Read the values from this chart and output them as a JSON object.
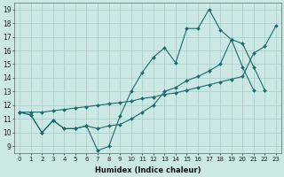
{
  "bg_color": "#cce8e4",
  "line_color": "#1a6b6b",
  "xlabel": "Humidex (Indice chaleur)",
  "series1_x": [
    0,
    1,
    2,
    3,
    4,
    5,
    6,
    7,
    8,
    9,
    10,
    11,
    12,
    13,
    14,
    15,
    16,
    17,
    18,
    19,
    20,
    21
  ],
  "series1_y": [
    11.5,
    11.3,
    10.0,
    10.9,
    10.3,
    10.3,
    10.5,
    8.7,
    9.0,
    11.2,
    13.0,
    14.4,
    15.5,
    16.2,
    15.1,
    17.6,
    17.6,
    19.0,
    17.5,
    16.8,
    14.8,
    13.1
  ],
  "series2_x": [
    0,
    1,
    2,
    3,
    4,
    5,
    6,
    7,
    8,
    9,
    10,
    11,
    12,
    13,
    14,
    15,
    16,
    17,
    18,
    19,
    20,
    21,
    22
  ],
  "series2_y": [
    11.5,
    11.3,
    10.0,
    10.9,
    10.3,
    10.3,
    10.5,
    10.3,
    10.5,
    10.6,
    11.0,
    11.5,
    12.0,
    13.0,
    13.3,
    13.8,
    14.1,
    14.5,
    15.0,
    16.8,
    16.5,
    14.8,
    13.1
  ],
  "series3_x": [
    0,
    1,
    2,
    3,
    4,
    5,
    6,
    7,
    8,
    9,
    10,
    11,
    12,
    13,
    14,
    15,
    16,
    17,
    18,
    19,
    20,
    21,
    22,
    23
  ],
  "series3_y": [
    11.5,
    11.5,
    11.5,
    11.6,
    11.7,
    11.8,
    11.9,
    12.0,
    12.1,
    12.2,
    12.3,
    12.5,
    12.6,
    12.8,
    12.9,
    13.1,
    13.3,
    13.5,
    13.7,
    13.9,
    14.1,
    15.8,
    16.3,
    17.8
  ],
  "xlim": [
    -0.5,
    23.5
  ],
  "ylim": [
    8.5,
    19.5
  ],
  "yticks": [
    9,
    10,
    11,
    12,
    13,
    14,
    15,
    16,
    17,
    18,
    19
  ]
}
